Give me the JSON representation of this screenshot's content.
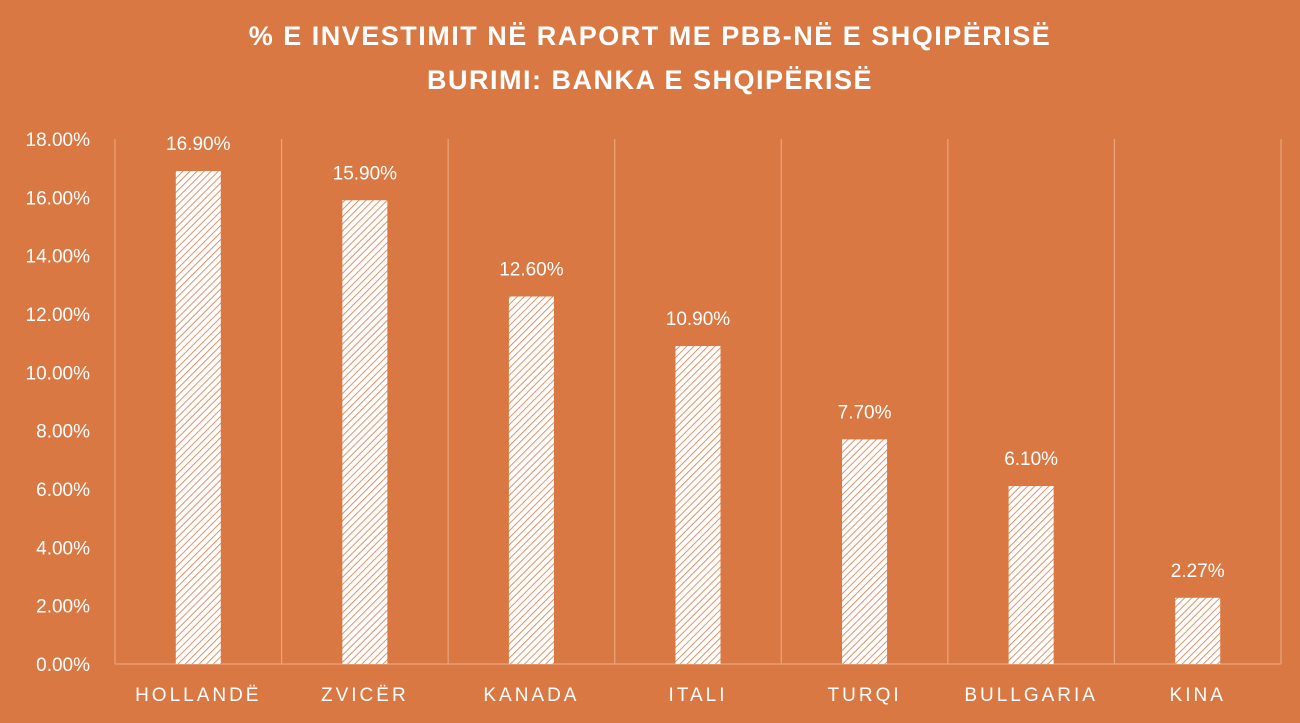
{
  "chart_data": {
    "type": "bar",
    "title": "% E INVESTIMIT NË RAPORT ME PBB-NË E SHQIPËRISË",
    "subtitle": "BURIMI: BANKA E SHQIPËRISË",
    "categories": [
      "HOLLANDË",
      "ZVICËR",
      "KANADA",
      "ITALI",
      "TURQI",
      "BULLGARIA",
      "KINA"
    ],
    "values": [
      16.9,
      15.9,
      12.6,
      10.9,
      7.7,
      6.1,
      2.27
    ],
    "data_labels": [
      "16.90%",
      "15.90%",
      "12.60%",
      "10.90%",
      "7.70%",
      "6.10%",
      "2.27%"
    ],
    "y_ticks": [
      "0.00%",
      "2.00%",
      "4.00%",
      "6.00%",
      "8.00%",
      "10.00%",
      "12.00%",
      "14.00%",
      "16.00%",
      "18.00%"
    ],
    "ylim": [
      0,
      18
    ],
    "xlabel": "",
    "ylabel": "",
    "grid": "vertical",
    "legend": "none",
    "colors": {
      "background": "#D97843",
      "bar_fill": "#ffffff",
      "bar_hatch": "#D97843",
      "text": "#ffffff",
      "grid": "#E9A57D"
    }
  }
}
